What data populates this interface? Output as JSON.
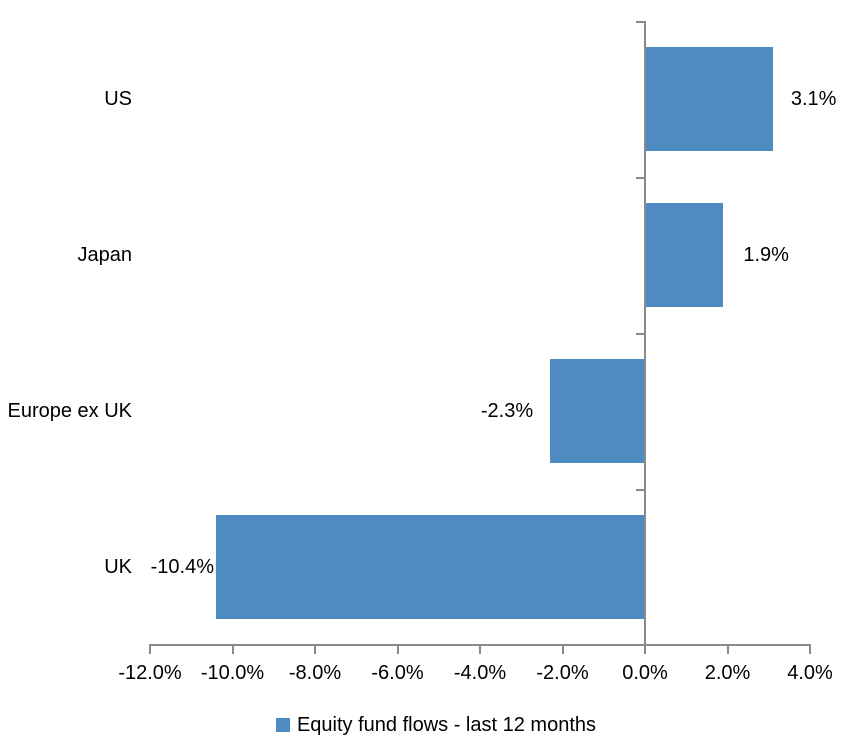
{
  "chart_data": {
    "type": "bar",
    "orientation": "horizontal",
    "title": "",
    "categories": [
      "US",
      "Japan",
      "Europe ex UK",
      "UK"
    ],
    "series": [
      {
        "name": "Equity fund flows - last 12 months",
        "color": "#4E8BC0",
        "values": [
          3.1,
          1.9,
          -2.3,
          -10.4
        ],
        "value_labels": [
          "3.1%",
          "1.9%",
          "-2.3%",
          "-10.4%"
        ]
      }
    ],
    "x_axis": {
      "min": -12,
      "max": 4,
      "tick_values": [
        -12,
        -10,
        -8,
        -6,
        -4,
        -2,
        0,
        2,
        4
      ],
      "tick_labels": [
        "-12.0%",
        "-10.0%",
        "-8.0%",
        "-6.0%",
        "-4.0%",
        "-2.0%",
        "0.0%",
        "2.0%",
        "4.0%"
      ]
    },
    "grid": false,
    "legend_position": "bottom-center",
    "axis_color": "#898989",
    "text_color": "#000000",
    "background_color": "#FFFFFF"
  }
}
